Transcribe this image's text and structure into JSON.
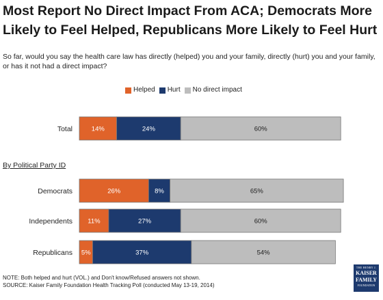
{
  "title": "Most Report No Direct Impact From ACA; Democrats More Likely to Feel Helped, Republicans More Likely to Feel Hurt",
  "question": "So far, would you say the health care law has directly (helped) you and your family, directly (hurt) you and your family, or has it not had a direct impact?",
  "section_label": "By Political Party ID",
  "notes": {
    "line1": "NOTE: Both helped and hurt (VOL.) and Don't know/Refused answers not shown.",
    "line2": "SOURCE: Kaiser Family Foundation Health Tracking Poll (conducted May 13-19, 2014)"
  },
  "logo": {
    "line1": "THE HENRY J.",
    "line2": "KAISER",
    "line3": "FAMILY",
    "line4": "FOUNDATION"
  },
  "colors": {
    "helped": "#e0632a",
    "hurt": "#1d3a6e",
    "no_impact": "#bdbdbd",
    "bar_border": "#777777"
  },
  "chart_data": {
    "type": "bar",
    "orientation": "horizontal",
    "stacked": true,
    "categories": [
      "Total",
      "Democrats",
      "Independents",
      "Republicans"
    ],
    "series": [
      {
        "name": "Helped",
        "values": [
          14,
          26,
          11,
          5
        ],
        "labels": [
          "14%",
          "26%",
          "11%",
          "5%"
        ]
      },
      {
        "name": "Hurt",
        "values": [
          24,
          8,
          27,
          37
        ],
        "labels": [
          "24%",
          "8%",
          "27%",
          "37%"
        ]
      },
      {
        "name": "No direct impact",
        "values": [
          60,
          65,
          60,
          54
        ],
        "labels": [
          "60%",
          "65%",
          "60%",
          "54%"
        ]
      }
    ],
    "legend_position": "top",
    "grid": false
  }
}
